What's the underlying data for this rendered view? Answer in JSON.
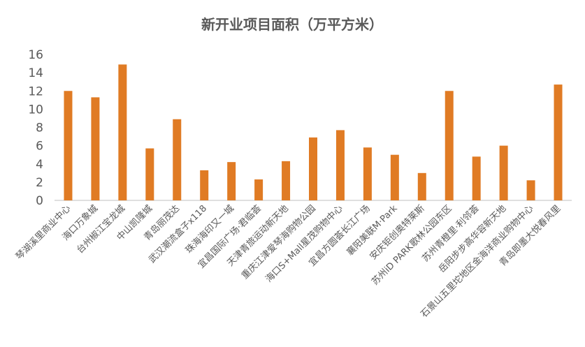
{
  "chart_data": {
    "type": "bar",
    "title": "新开业项目面积（万平方米）",
    "xlabel": "",
    "ylabel": "",
    "ylim": [
      0,
      16
    ],
    "yticks": [
      "0",
      "2",
      "4",
      "6",
      "8",
      "10",
      "12",
      "14",
      "16"
    ],
    "grid": false,
    "legend": "none",
    "bar_color": "#E07B24",
    "categories": [
      "琴湖溪里商业中心",
      "海口万象城",
      "台州椒江宝龙城",
      "中山凯隆城",
      "青岛丽茂达",
      "武汉潮流盒子x118",
      "珠海海印又一城",
      "宜昌国际广场·君临荟",
      "天津青旅运动新天地",
      "重庆江津爱琴海购物公园",
      "海口S+Mall星茂购物中心",
      "宜昌方圆荟长江广场",
      "襄阳美联M·Park",
      "安庆钜创奥特莱斯",
      "苏州iD PARK歌林公园东区",
      "苏州青橙里·利邻荟",
      "岳阳步步高华容新天地",
      "石景山五里坨地区金海洋商业购物中心",
      "青岛即墨大悦春风里"
    ],
    "values": [
      12.0,
      11.3,
      14.9,
      5.7,
      8.9,
      3.3,
      4.2,
      2.3,
      4.3,
      6.9,
      7.7,
      5.8,
      5.0,
      3.0,
      12.0,
      4.8,
      6.0,
      2.2,
      12.7
    ]
  }
}
